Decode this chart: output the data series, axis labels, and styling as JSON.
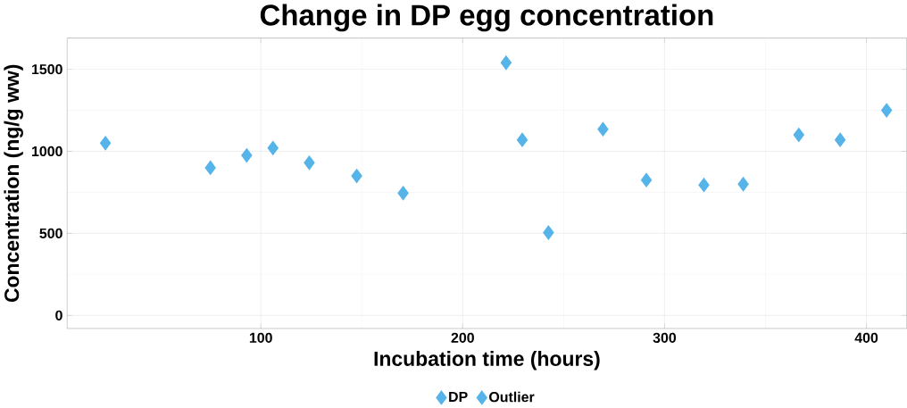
{
  "chart_data": {
    "type": "scatter",
    "title": "Change in DP egg concentration",
    "xlabel": "Incubation time (hours)",
    "ylabel": "Concentration (ng/g ww)",
    "series": [
      {
        "name": "DP",
        "color": "#56b4e9",
        "x": [
          23,
          75,
          93,
          106,
          124,
          147.5,
          170.5,
          229.5,
          242.5,
          269.5,
          291,
          319.5,
          339,
          366.5,
          387,
          410
        ],
        "values": [
          1050,
          900,
          975,
          1020,
          930,
          850,
          745,
          1070,
          505,
          1135,
          825,
          795,
          800,
          1100,
          1070,
          1250
        ]
      },
      {
        "name": "Outlier",
        "color": "#56b4e9",
        "x": [
          221.5
        ],
        "values": [
          1540
        ]
      }
    ],
    "xlim": [
      4,
      420
    ],
    "ylim": [
      -80,
      1690
    ],
    "xticks": [
      100,
      200,
      300,
      400
    ],
    "yticks": [
      0,
      500,
      1000,
      1500
    ],
    "grid": true,
    "legend": "bottom",
    "marker": "diamond"
  }
}
